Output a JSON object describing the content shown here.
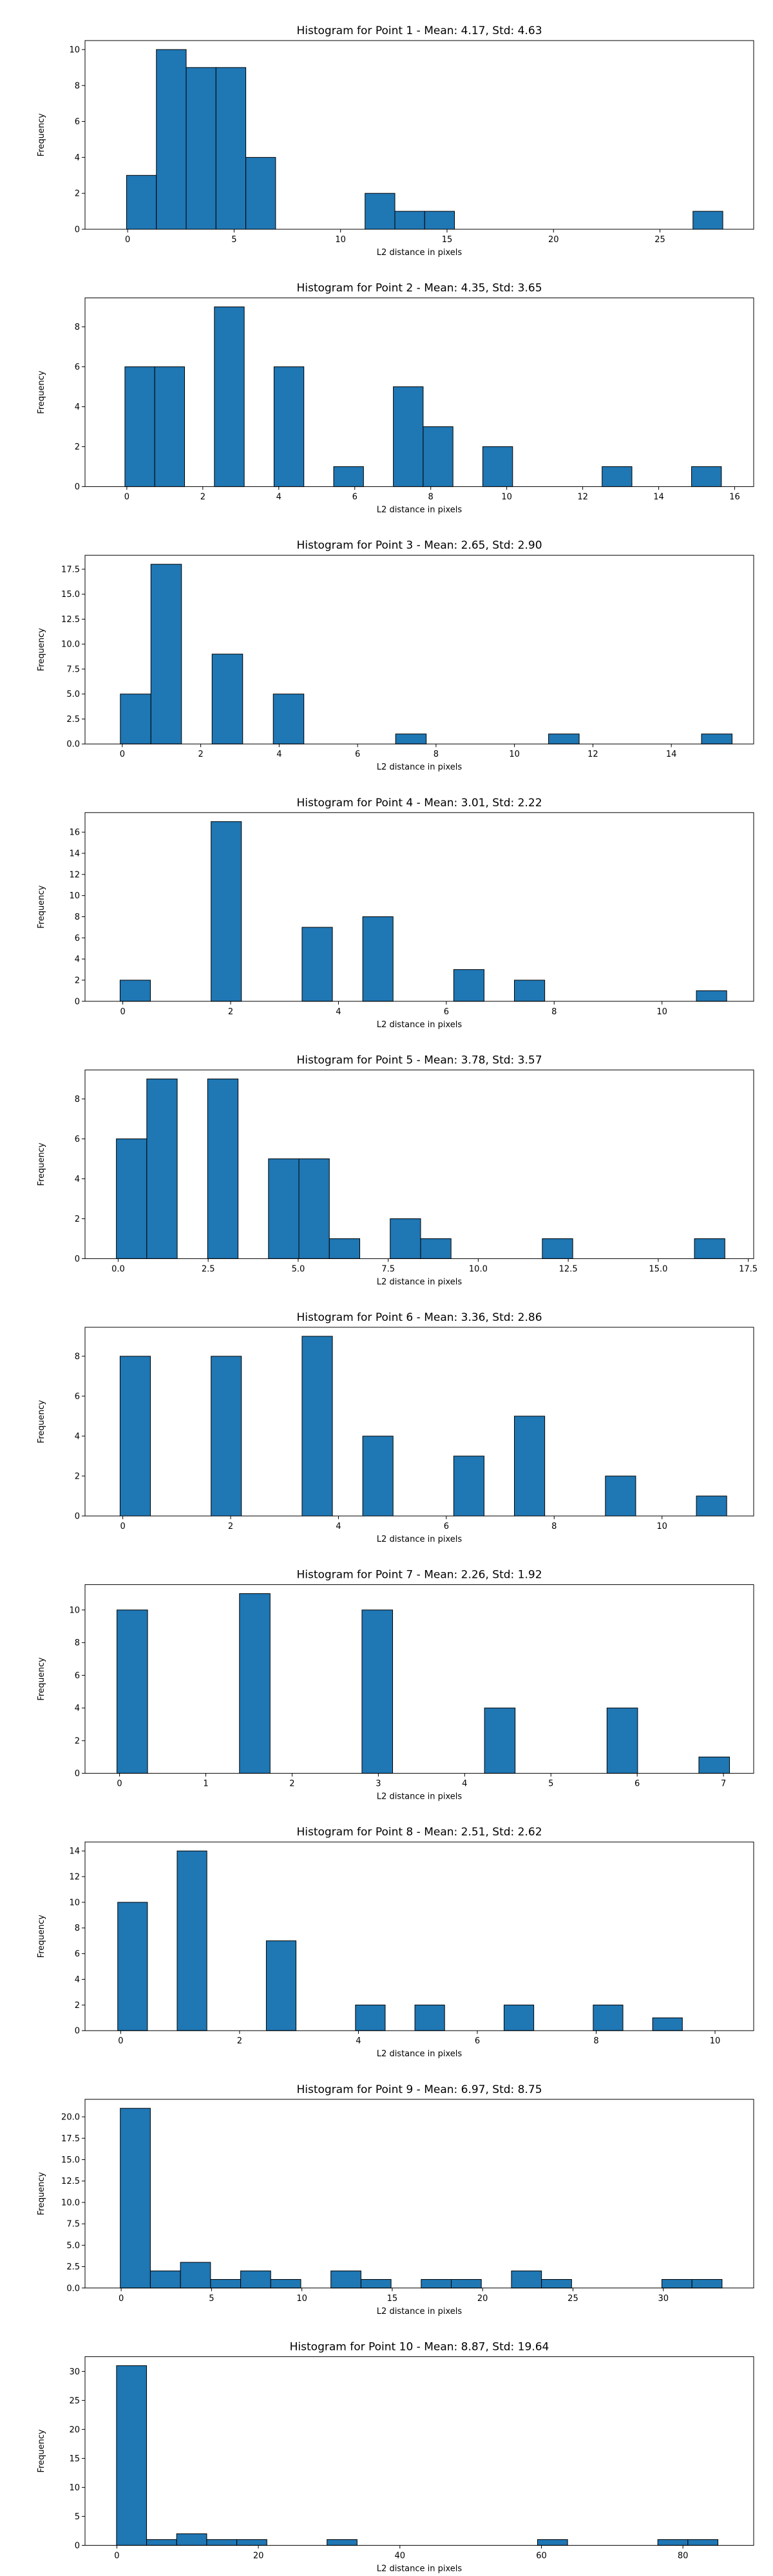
{
  "style": {
    "bar_color": "#1f77b4",
    "edge_color": "#000000",
    "background": "#ffffff"
  },
  "chart_data": [
    {
      "type": "bar",
      "title": "Histogram for Point 1 - Mean: 4.17, Std: 4.63",
      "xlabel": "L2 distance in pixels",
      "ylabel": "Frequency",
      "xlim": [
        -2.0,
        29.4
      ],
      "ylim": [
        0,
        10.5
      ],
      "xticks": [
        0,
        5,
        10,
        15,
        20,
        25
      ],
      "xtick_labels": [
        "0",
        "5",
        "10",
        "15",
        "20",
        "25"
      ],
      "yticks": [
        0,
        2,
        4,
        6,
        8,
        10
      ],
      "ytick_labels": [
        "0",
        "2",
        "4",
        "6",
        "8",
        "10"
      ],
      "bin_start": -0.05,
      "bin_width": 1.4,
      "counts": [
        3,
        10,
        9,
        9,
        4,
        0,
        0,
        0,
        2,
        1,
        1,
        0,
        0,
        0,
        0,
        0,
        0,
        0,
        0,
        1
      ]
    },
    {
      "type": "bar",
      "title": "Histogram for Point 2 - Mean: 4.35, Std: 3.65",
      "xlabel": "L2 distance in pixels",
      "ylabel": "Frequency",
      "xlim": [
        -1.1,
        16.5
      ],
      "ylim": [
        0,
        9.45
      ],
      "xticks": [
        0,
        2,
        4,
        6,
        8,
        10,
        12,
        14,
        16
      ],
      "xtick_labels": [
        "0",
        "2",
        "4",
        "6",
        "8",
        "10",
        "12",
        "14",
        "16"
      ],
      "yticks": [
        0,
        2,
        4,
        6,
        8
      ],
      "ytick_labels": [
        "0",
        "2",
        "4",
        "6",
        "8"
      ],
      "bin_start": -0.05,
      "bin_width": 0.785,
      "counts": [
        6,
        6,
        0,
        9,
        0,
        6,
        0,
        1,
        0,
        5,
        3,
        0,
        2,
        0,
        0,
        0,
        1,
        0,
        0,
        1
      ]
    },
    {
      "type": "bar",
      "title": "Histogram for Point 3 - Mean: 2.65, Std: 2.90",
      "xlabel": "L2 distance in pixels",
      "ylabel": "Frequency",
      "xlim": [
        -0.95,
        16.1
      ],
      "ylim": [
        0,
        18.9
      ],
      "xticks": [
        0,
        2,
        4,
        6,
        8,
        10,
        12,
        14
      ],
      "xtick_labels": [
        "0",
        "2",
        "4",
        "6",
        "8",
        "10",
        "12",
        "14"
      ],
      "yticks": [
        0,
        2.5,
        5,
        7.5,
        10,
        12.5,
        15,
        17.5
      ],
      "ytick_labels": [
        "0.0",
        "2.5",
        "5.0",
        "7.5",
        "10.0",
        "12.5",
        "15.0",
        "17.5"
      ],
      "bin_start": -0.05,
      "bin_width": 0.78,
      "counts": [
        5,
        18,
        0,
        9,
        0,
        5,
        0,
        0,
        0,
        1,
        0,
        0,
        0,
        0,
        1,
        0,
        0,
        0,
        0,
        1
      ]
    },
    {
      "type": "bar",
      "title": "Histogram for Point 4 - Mean: 3.01, Std: 2.22",
      "xlabel": "L2 distance in pixels",
      "ylabel": "Frequency",
      "xlim": [
        -0.7,
        11.7
      ],
      "ylim": [
        0,
        17.85
      ],
      "xticks": [
        0,
        2,
        4,
        6,
        8,
        10
      ],
      "xtick_labels": [
        "0",
        "2",
        "4",
        "6",
        "8",
        "10"
      ],
      "yticks": [
        0,
        2,
        4,
        6,
        8,
        10,
        12,
        14,
        16
      ],
      "ytick_labels": [
        "0",
        "2",
        "4",
        "6",
        "8",
        "10",
        "12",
        "14",
        "16"
      ],
      "bin_start": -0.05,
      "bin_width": 0.5625,
      "counts": [
        2,
        0,
        0,
        17,
        0,
        0,
        7,
        0,
        8,
        0,
        0,
        3,
        0,
        2,
        0,
        0,
        0,
        0,
        0,
        1
      ]
    },
    {
      "type": "bar",
      "title": "Histogram for Point 5 - Mean: 3.78, Std: 3.57",
      "xlabel": "L2 distance in pixels",
      "ylabel": "Frequency",
      "xlim": [
        -0.92,
        17.65
      ],
      "ylim": [
        0,
        9.45
      ],
      "xticks": [
        0,
        2.5,
        5,
        7.5,
        10,
        12.5,
        15,
        17.5
      ],
      "xtick_labels": [
        "0.0",
        "2.5",
        "5.0",
        "7.5",
        "10.0",
        "12.5",
        "15.0",
        "17.5"
      ],
      "yticks": [
        0,
        2,
        4,
        6,
        8
      ],
      "ytick_labels": [
        "0",
        "2",
        "4",
        "6",
        "8"
      ],
      "bin_start": -0.05,
      "bin_width": 0.845,
      "counts": [
        6,
        9,
        0,
        9,
        0,
        5,
        5,
        1,
        0,
        2,
        1,
        0,
        0,
        0,
        1,
        0,
        0,
        0,
        0,
        1
      ]
    },
    {
      "type": "bar",
      "title": "Histogram for Point 6 - Mean: 3.36, Std: 2.86",
      "xlabel": "L2 distance in pixels",
      "ylabel": "Frequency",
      "xlim": [
        -0.7,
        11.7
      ],
      "ylim": [
        0,
        9.45
      ],
      "xticks": [
        0,
        2,
        4,
        6,
        8,
        10
      ],
      "xtick_labels": [
        "0",
        "2",
        "4",
        "6",
        "8",
        "10"
      ],
      "yticks": [
        0,
        2,
        4,
        6,
        8
      ],
      "ytick_labels": [
        "0",
        "2",
        "4",
        "6",
        "8"
      ],
      "bin_start": -0.05,
      "bin_width": 0.5625,
      "counts": [
        8,
        0,
        0,
        8,
        0,
        0,
        9,
        0,
        4,
        0,
        0,
        3,
        0,
        5,
        0,
        0,
        2,
        0,
        0,
        1
      ]
    },
    {
      "type": "bar",
      "title": "Histogram for Point 7 - Mean: 2.26, Std: 1.92",
      "xlabel": "L2 distance in pixels",
      "ylabel": "Frequency",
      "xlim": [
        -0.4,
        7.35
      ],
      "ylim": [
        0,
        11.55
      ],
      "xticks": [
        0,
        1,
        2,
        3,
        4,
        5,
        6,
        7
      ],
      "xtick_labels": [
        "0",
        "1",
        "2",
        "3",
        "4",
        "5",
        "6",
        "7"
      ],
      "yticks": [
        0,
        2,
        4,
        6,
        8,
        10
      ],
      "ytick_labels": [
        "0",
        "2",
        "4",
        "6",
        "8",
        "10"
      ],
      "bin_start": -0.03,
      "bin_width": 0.355,
      "counts": [
        10,
        0,
        0,
        0,
        11,
        0,
        0,
        0,
        10,
        0,
        0,
        0,
        4,
        0,
        0,
        0,
        4,
        0,
        0,
        1
      ]
    },
    {
      "type": "bar",
      "title": "Histogram for Point 8 - Mean: 2.51, Std: 2.62",
      "xlabel": "L2 distance in pixels",
      "ylabel": "Frequency",
      "xlim": [
        -0.6,
        10.65
      ],
      "ylim": [
        0,
        14.7
      ],
      "xticks": [
        0,
        2,
        4,
        6,
        8,
        10
      ],
      "xtick_labels": [
        "0",
        "2",
        "4",
        "6",
        "8",
        "10"
      ],
      "yticks": [
        0,
        2,
        4,
        6,
        8,
        10,
        12,
        14
      ],
      "ytick_labels": [
        "0",
        "2",
        "4",
        "6",
        "8",
        "10",
        "12",
        "14"
      ],
      "bin_start": -0.05,
      "bin_width": 0.5,
      "counts": [
        10,
        0,
        14,
        0,
        0,
        7,
        0,
        0,
        2,
        0,
        2,
        0,
        0,
        2,
        0,
        0,
        2,
        0,
        1
      ]
    },
    {
      "type": "bar",
      "title": "Histogram for Point 9 - Mean: 6.97, Std: 8.75",
      "xlabel": "L2 distance in pixels",
      "ylabel": "Frequency",
      "xlim": [
        -2.0,
        35.0
      ],
      "ylim": [
        0,
        22.05
      ],
      "xticks": [
        0,
        5,
        10,
        15,
        20,
        25,
        30
      ],
      "xtick_labels": [
        "0",
        "5",
        "10",
        "15",
        "20",
        "25",
        "30"
      ],
      "yticks": [
        0,
        2.5,
        5,
        7.5,
        10,
        12.5,
        15,
        17.5,
        20
      ],
      "ytick_labels": [
        "0.0",
        "2.5",
        "5.0",
        "7.5",
        "10.0",
        "12.5",
        "15.0",
        "17.5",
        "20.0"
      ],
      "bin_start": -0.05,
      "bin_width": 1.665,
      "counts": [
        21,
        2,
        3,
        1,
        2,
        1,
        0,
        2,
        1,
        0,
        1,
        1,
        0,
        2,
        1,
        0,
        0,
        0,
        1,
        1
      ]
    },
    {
      "type": "bar",
      "title": "Histogram for Point 10 - Mean: 8.87, Std: 19.64",
      "xlabel": "L2 distance in pixels",
      "ylabel": "Frequency",
      "xlim": [
        -4.5,
        90.0
      ],
      "ylim": [
        0,
        32.55
      ],
      "xticks": [
        0,
        20,
        40,
        60,
        80
      ],
      "xtick_labels": [
        "0",
        "20",
        "40",
        "60",
        "80"
      ],
      "yticks": [
        0,
        5,
        10,
        15,
        20,
        25,
        30
      ],
      "ytick_labels": [
        "0",
        "5",
        "10",
        "15",
        "20",
        "25",
        "30"
      ],
      "bin_start": -0.05,
      "bin_width": 4.25,
      "counts": [
        31,
        1,
        2,
        1,
        1,
        0,
        0,
        1,
        0,
        0,
        0,
        0,
        0,
        0,
        1,
        0,
        0,
        0,
        1,
        1
      ]
    }
  ]
}
